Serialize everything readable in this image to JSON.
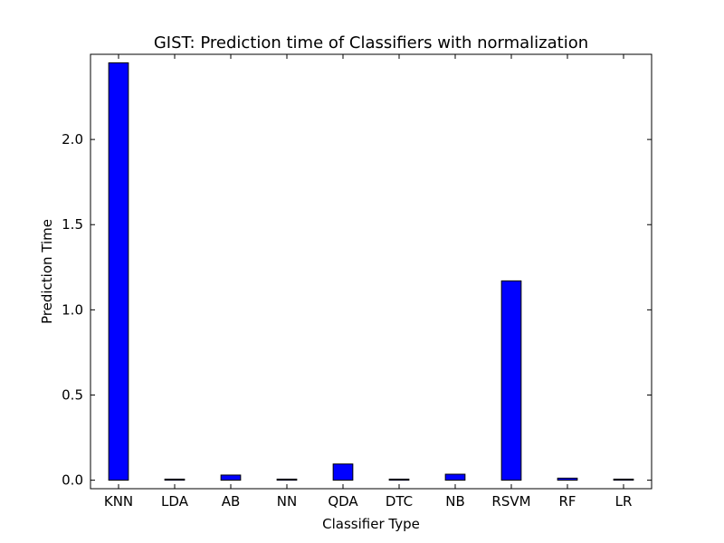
{
  "chart_data": {
    "type": "bar",
    "title": "GIST: Prediction time of Classifiers with normalization",
    "xlabel": "Classifier Type",
    "ylabel": "Prediction Time",
    "categories": [
      "KNN",
      "LDA",
      "AB",
      "NN",
      "QDA",
      "DTC",
      "NB",
      "RSVM",
      "RF",
      "LR"
    ],
    "values": [
      2.45,
      0.004,
      0.03,
      0.004,
      0.095,
      0.004,
      0.035,
      1.17,
      0.012,
      0.004
    ],
    "ylim": [
      -0.05,
      2.5
    ],
    "yticks": [
      0.0,
      0.5,
      1.0,
      1.5,
      2.0
    ],
    "ytick_labels": [
      "0.0",
      "0.5",
      "1.0",
      "1.5",
      "2.0"
    ],
    "grid": false,
    "bar_color": "#0000ff",
    "edge_color": "#000000"
  }
}
